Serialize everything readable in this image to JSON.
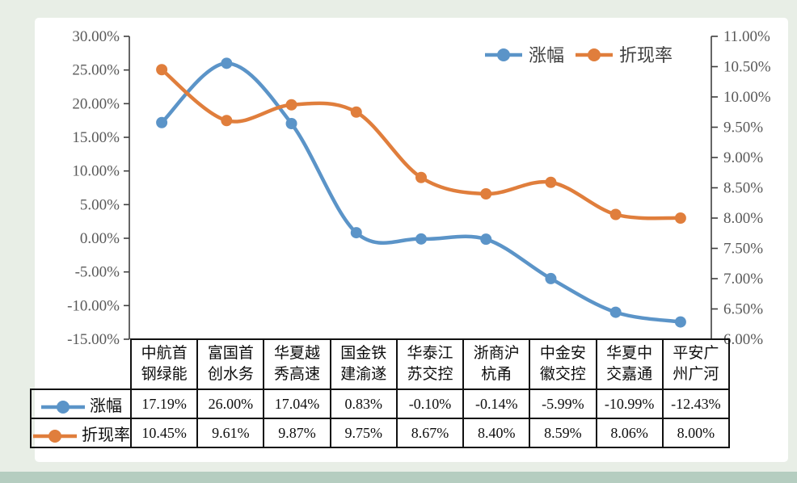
{
  "page": {
    "background_color": "#e8eee6",
    "panel_color": "#ffffff",
    "footer_strip_color": "#b5cdc0"
  },
  "chart_data": {
    "type": "line",
    "smooth": true,
    "grid": false,
    "legend_position": "top",
    "categories": [
      [
        "中航首",
        "钢绿能"
      ],
      [
        "富国首",
        "创水务"
      ],
      [
        "华夏越",
        "秀高速"
      ],
      [
        "国金铁",
        "建渝遂"
      ],
      [
        "华泰江",
        "苏交控"
      ],
      [
        "浙商沪",
        "杭甬"
      ],
      [
        "中金安",
        "徽交控"
      ],
      [
        "华夏中",
        "交嘉通"
      ],
      [
        "平安广",
        "州广河"
      ]
    ],
    "series": [
      {
        "name": "涨幅",
        "axis": "left",
        "color": "#5b94c8",
        "values": [
          17.19,
          26.0,
          17.04,
          0.83,
          -0.1,
          -0.14,
          -5.99,
          -10.99,
          -12.43
        ]
      },
      {
        "name": "折现率",
        "axis": "right",
        "color": "#e07e3c",
        "values": [
          10.45,
          9.61,
          9.87,
          9.75,
          8.67,
          8.4,
          8.59,
          8.06,
          8.0
        ]
      }
    ],
    "left_axis": {
      "max": 30,
      "min": -15,
      "step": 5,
      "tick_format": "0.00%"
    },
    "right_axis": {
      "max": 11,
      "min": 6,
      "step": 0.5,
      "tick_format": "0.00%"
    },
    "axis_text_color": "#595959",
    "axis_line_color": "#3f3f3f",
    "legend_text_color": "#404040"
  },
  "table": {
    "value_suffix": "%",
    "decimals": 2
  }
}
